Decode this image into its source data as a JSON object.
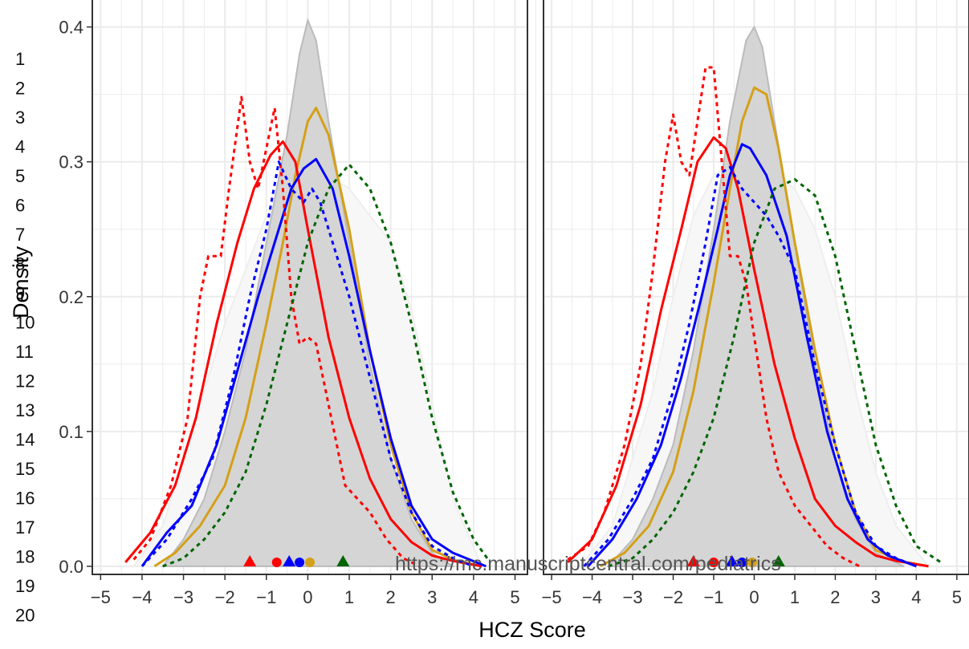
{
  "line_numbers": [
    "1",
    "2",
    "3",
    "4",
    "5",
    "6",
    "7",
    "8",
    "9",
    "10",
    "11",
    "12",
    "13",
    "14",
    "15",
    "16",
    "17",
    "18",
    "19",
    "20"
  ],
  "watermark": "https://mc.manuscriptcentral.com/pediatrics",
  "colors": {
    "red": "#ff0000",
    "blue": "#0000ff",
    "gold": "#d4a017",
    "green": "#006400",
    "gray_fill": "#d3d3d3",
    "light_fill": "#f5f5f5",
    "grid": "#ebebeb"
  },
  "chart_data": {
    "type": "area",
    "xlabel": "HCZ Score",
    "ylabel": "Density",
    "xlim": [
      -5.2,
      5.3
    ],
    "ylim": [
      -0.006,
      0.42
    ],
    "x_ticks": [
      -5,
      -4,
      -3,
      -2,
      -1,
      0,
      1,
      2,
      3,
      4,
      5
    ],
    "x_tick_labels": [
      "−5",
      "−4",
      "−3",
      "−2",
      "−1",
      "0",
      "1",
      "2",
      "3",
      "4",
      "5"
    ],
    "y_ticks": [
      0.0,
      0.1,
      0.2,
      0.3,
      0.4
    ],
    "y_tick_labels": [
      "0.0",
      "0.1",
      "0.2",
      "0.3",
      "0.4"
    ],
    "grid": true,
    "legend": "none",
    "panels": [
      {
        "series": [
          {
            "color": "#f7f7f7",
            "style": "filled",
            "x": [
              -4.2,
              -3.5,
              -3,
              -2.6,
              -2,
              -1.5,
              -1,
              -0.5,
              0,
              0.5,
              1,
              1.5,
              2,
              2.5,
              3,
              3.5,
              4.2
            ],
            "y": [
              0,
              0.03,
              0.08,
              0.12,
              0.18,
              0.22,
              0.26,
              0.28,
              0.29,
              0.29,
              0.28,
              0.26,
              0.24,
              0.19,
              0.12,
              0.05,
              0
            ]
          },
          {
            "color": "#d3d3d3",
            "style": "filled-gray",
            "x": [
              -3.5,
              -3,
              -2.5,
              -2,
              -1.5,
              -1,
              -0.5,
              -0.2,
              0,
              0.2,
              0.5,
              1,
              1.5,
              2,
              2.5,
              3,
              3.5
            ],
            "y": [
              0,
              0.02,
              0.05,
              0.1,
              0.16,
              0.24,
              0.32,
              0.38,
              0.405,
              0.39,
              0.33,
              0.24,
              0.15,
              0.08,
              0.035,
              0.01,
              0
            ]
          },
          {
            "color": "#d4a017",
            "style": "solid",
            "x": [
              -3.7,
              -3.2,
              -2.6,
              -2,
              -1.5,
              -1,
              -0.6,
              -0.3,
              0,
              0.2,
              0.5,
              1,
              1.5,
              2,
              2.5,
              3,
              3.6,
              4.2
            ],
            "y": [
              0,
              0.01,
              0.03,
              0.06,
              0.11,
              0.18,
              0.24,
              0.29,
              0.33,
              0.34,
              0.32,
              0.25,
              0.16,
              0.09,
              0.04,
              0.012,
              0.004,
              0
            ]
          },
          {
            "color": "#ff0000",
            "style": "solid",
            "x": [
              -4.4,
              -3.8,
              -3.2,
              -2.7,
              -2.2,
              -1.7,
              -1.3,
              -0.9,
              -0.6,
              -0.3,
              0,
              0.5,
              1,
              1.5,
              2,
              2.5,
              3,
              3.5,
              4.2
            ],
            "y": [
              0.003,
              0.025,
              0.06,
              0.11,
              0.18,
              0.24,
              0.28,
              0.305,
              0.315,
              0.3,
              0.25,
              0.17,
              0.11,
              0.065,
              0.035,
              0.018,
              0.008,
              0.004,
              0
            ]
          },
          {
            "color": "#0000ff",
            "style": "solid",
            "x": [
              -4,
              -3.4,
              -2.8,
              -2.2,
              -1.7,
              -1.2,
              -0.8,
              -0.4,
              -0.1,
              0.2,
              0.6,
              1,
              1.5,
              2,
              2.5,
              3,
              3.5,
              4.3
            ],
            "y": [
              0,
              0.025,
              0.045,
              0.09,
              0.145,
              0.2,
              0.24,
              0.28,
              0.295,
              0.302,
              0.28,
              0.23,
              0.16,
              0.095,
              0.045,
              0.02,
              0.01,
              0
            ]
          },
          {
            "color": "#ff0000",
            "style": "dotted",
            "x": [
              -4.2,
              -3.8,
              -3.3,
              -2.9,
              -2.6,
              -2.4,
              -2.1,
              -1.9,
              -1.6,
              -1.4,
              -1.2,
              -1,
              -0.8,
              -0.6,
              -0.4,
              -0.2,
              0,
              0.2,
              0.5,
              0.9,
              1.2,
              1.5,
              1.9,
              2.3,
              2.7
            ],
            "y": [
              0.005,
              0.02,
              0.06,
              0.11,
              0.2,
              0.23,
              0.23,
              0.28,
              0.348,
              0.3,
              0.28,
              0.31,
              0.34,
              0.28,
              0.2,
              0.165,
              0.17,
              0.165,
              0.12,
              0.06,
              0.05,
              0.04,
              0.02,
              0.006,
              0
            ]
          },
          {
            "color": "#0000ff",
            "style": "dotted",
            "x": [
              -4,
              -3.4,
              -2.8,
              -2.3,
              -1.8,
              -1.4,
              -1,
              -0.7,
              -0.4,
              -0.1,
              0.1,
              0.3,
              0.6,
              1,
              1.5,
              2,
              2.5,
              3,
              3.5,
              4
            ],
            "y": [
              0,
              0.02,
              0.05,
              0.08,
              0.14,
              0.2,
              0.25,
              0.3,
              0.28,
              0.27,
              0.28,
              0.27,
              0.24,
              0.2,
              0.14,
              0.08,
              0.04,
              0.015,
              0.006,
              0
            ]
          },
          {
            "color": "#006400",
            "style": "dotted",
            "x": [
              -3.5,
              -3,
              -2.5,
              -2,
              -1.5,
              -1,
              -0.5,
              0,
              0.5,
              1,
              1.5,
              2,
              2.5,
              3,
              3.5,
              4,
              4.4
            ],
            "y": [
              0,
              0.006,
              0.02,
              0.04,
              0.07,
              0.12,
              0.18,
              0.24,
              0.28,
              0.298,
              0.28,
              0.24,
              0.18,
              0.11,
              0.055,
              0.02,
              0.003
            ]
          }
        ],
        "markers": [
          {
            "shape": "triangle",
            "color": "#ff0000",
            "x": -1.4
          },
          {
            "shape": "circle",
            "color": "#ff0000",
            "x": -0.75
          },
          {
            "shape": "triangle",
            "color": "#0000ff",
            "x": -0.45
          },
          {
            "shape": "circle",
            "color": "#0000ff",
            "x": -0.2
          },
          {
            "shape": "circle",
            "color": "#d4a017",
            "x": 0.05
          },
          {
            "shape": "triangle",
            "color": "#006400",
            "x": 0.85
          }
        ]
      },
      {
        "series": [
          {
            "color": "#f7f7f7",
            "style": "filled",
            "x": [
              -4.3,
              -3.5,
              -3,
              -2.5,
              -2,
              -1.5,
              -1,
              -0.5,
              0,
              0.5,
              1,
              1.5,
              2,
              2.5,
              3,
              3.5,
              4.3
            ],
            "y": [
              0,
              0.03,
              0.08,
              0.13,
              0.2,
              0.26,
              0.29,
              0.3,
              0.3,
              0.29,
              0.28,
              0.25,
              0.2,
              0.13,
              0.07,
              0.03,
              0
            ]
          },
          {
            "color": "#d3d3d3",
            "style": "filled-gray",
            "x": [
              -3.6,
              -3,
              -2.5,
              -2,
              -1.5,
              -1,
              -0.6,
              -0.2,
              0,
              0.2,
              0.5,
              1,
              1.5,
              2,
              2.5,
              3,
              3.7
            ],
            "y": [
              0,
              0.02,
              0.05,
              0.09,
              0.16,
              0.25,
              0.33,
              0.39,
              0.4,
              0.385,
              0.33,
              0.24,
              0.15,
              0.08,
              0.035,
              0.01,
              0
            ]
          },
          {
            "color": "#d4a017",
            "style": "solid",
            "x": [
              -3.8,
              -3.2,
              -2.6,
              -2,
              -1.5,
              -1,
              -0.6,
              -0.3,
              0,
              0.3,
              0.6,
              1,
              1.5,
              2,
              2.5,
              3,
              3.6,
              4.3
            ],
            "y": [
              0,
              0.01,
              0.03,
              0.07,
              0.13,
              0.21,
              0.28,
              0.33,
              0.355,
              0.35,
              0.31,
              0.24,
              0.16,
              0.09,
              0.04,
              0.012,
              0.004,
              0
            ]
          },
          {
            "color": "#ff0000",
            "style": "solid",
            "x": [
              -4.6,
              -4,
              -3.4,
              -2.8,
              -2.3,
              -1.8,
              -1.4,
              -1,
              -0.7,
              -0.4,
              0,
              0.5,
              1,
              1.5,
              2,
              2.5,
              3,
              3.5,
              4.3
            ],
            "y": [
              0.003,
              0.02,
              0.06,
              0.12,
              0.19,
              0.25,
              0.3,
              0.318,
              0.31,
              0.28,
              0.22,
              0.15,
              0.095,
              0.05,
              0.03,
              0.018,
              0.008,
              0.004,
              0
            ]
          },
          {
            "color": "#0000ff",
            "style": "solid",
            "x": [
              -4.1,
              -3.5,
              -2.9,
              -2.3,
              -1.8,
              -1.3,
              -0.9,
              -0.6,
              -0.3,
              -0.1,
              0.3,
              0.8,
              1.3,
              1.8,
              2.3,
              2.8,
              3.3,
              4
            ],
            "y": [
              0,
              0.02,
              0.05,
              0.09,
              0.14,
              0.2,
              0.25,
              0.29,
              0.313,
              0.31,
              0.29,
              0.245,
              0.17,
              0.1,
              0.05,
              0.02,
              0.008,
              0
            ]
          },
          {
            "color": "#ff0000",
            "style": "dotted",
            "x": [
              -4.6,
              -4.1,
              -3.7,
              -3.2,
              -2.8,
              -2.5,
              -2.2,
              -2,
              -1.8,
              -1.6,
              -1.4,
              -1.2,
              -1,
              -0.8,
              -0.6,
              -0.4,
              -0.2,
              0,
              0.3,
              0.6,
              1,
              1.4,
              1.8,
              2.2,
              2.6
            ],
            "y": [
              0.005,
              0.015,
              0.04,
              0.09,
              0.15,
              0.22,
              0.3,
              0.335,
              0.3,
              0.29,
              0.33,
              0.37,
              0.37,
              0.3,
              0.23,
              0.23,
              0.21,
              0.17,
              0.11,
              0.07,
              0.045,
              0.03,
              0.015,
              0.006,
              0
            ]
          },
          {
            "color": "#0000ff",
            "style": "dotted",
            "x": [
              -4.2,
              -3.6,
              -3,
              -2.5,
              -2,
              -1.6,
              -1.2,
              -0.9,
              -0.6,
              -0.3,
              0,
              0.3,
              0.6,
              1,
              1.5,
              2,
              2.5,
              3,
              3.5,
              4
            ],
            "y": [
              0,
              0.02,
              0.05,
              0.08,
              0.13,
              0.18,
              0.24,
              0.29,
              0.296,
              0.28,
              0.27,
              0.26,
              0.245,
              0.22,
              0.15,
              0.09,
              0.04,
              0.015,
              0.006,
              0
            ]
          },
          {
            "color": "#006400",
            "style": "dotted",
            "x": [
              -3.6,
              -3,
              -2.5,
              -2,
              -1.5,
              -1,
              -0.5,
              0,
              0.5,
              1,
              1.5,
              2,
              2.5,
              3,
              3.5,
              4,
              4.6
            ],
            "y": [
              0,
              0.006,
              0.02,
              0.04,
              0.07,
              0.11,
              0.17,
              0.24,
              0.28,
              0.287,
              0.275,
              0.23,
              0.16,
              0.09,
              0.045,
              0.015,
              0.003
            ]
          }
        ],
        "markers": [
          {
            "shape": "triangle",
            "color": "#ff0000",
            "x": -1.5
          },
          {
            "shape": "circle",
            "color": "#ff0000",
            "x": -1.0
          },
          {
            "shape": "triangle",
            "color": "#0000ff",
            "x": -0.55
          },
          {
            "shape": "circle",
            "color": "#0000ff",
            "x": -0.3
          },
          {
            "shape": "circle",
            "color": "#d4a017",
            "x": -0.05
          },
          {
            "shape": "triangle",
            "color": "#006400",
            "x": 0.6
          }
        ]
      }
    ]
  }
}
